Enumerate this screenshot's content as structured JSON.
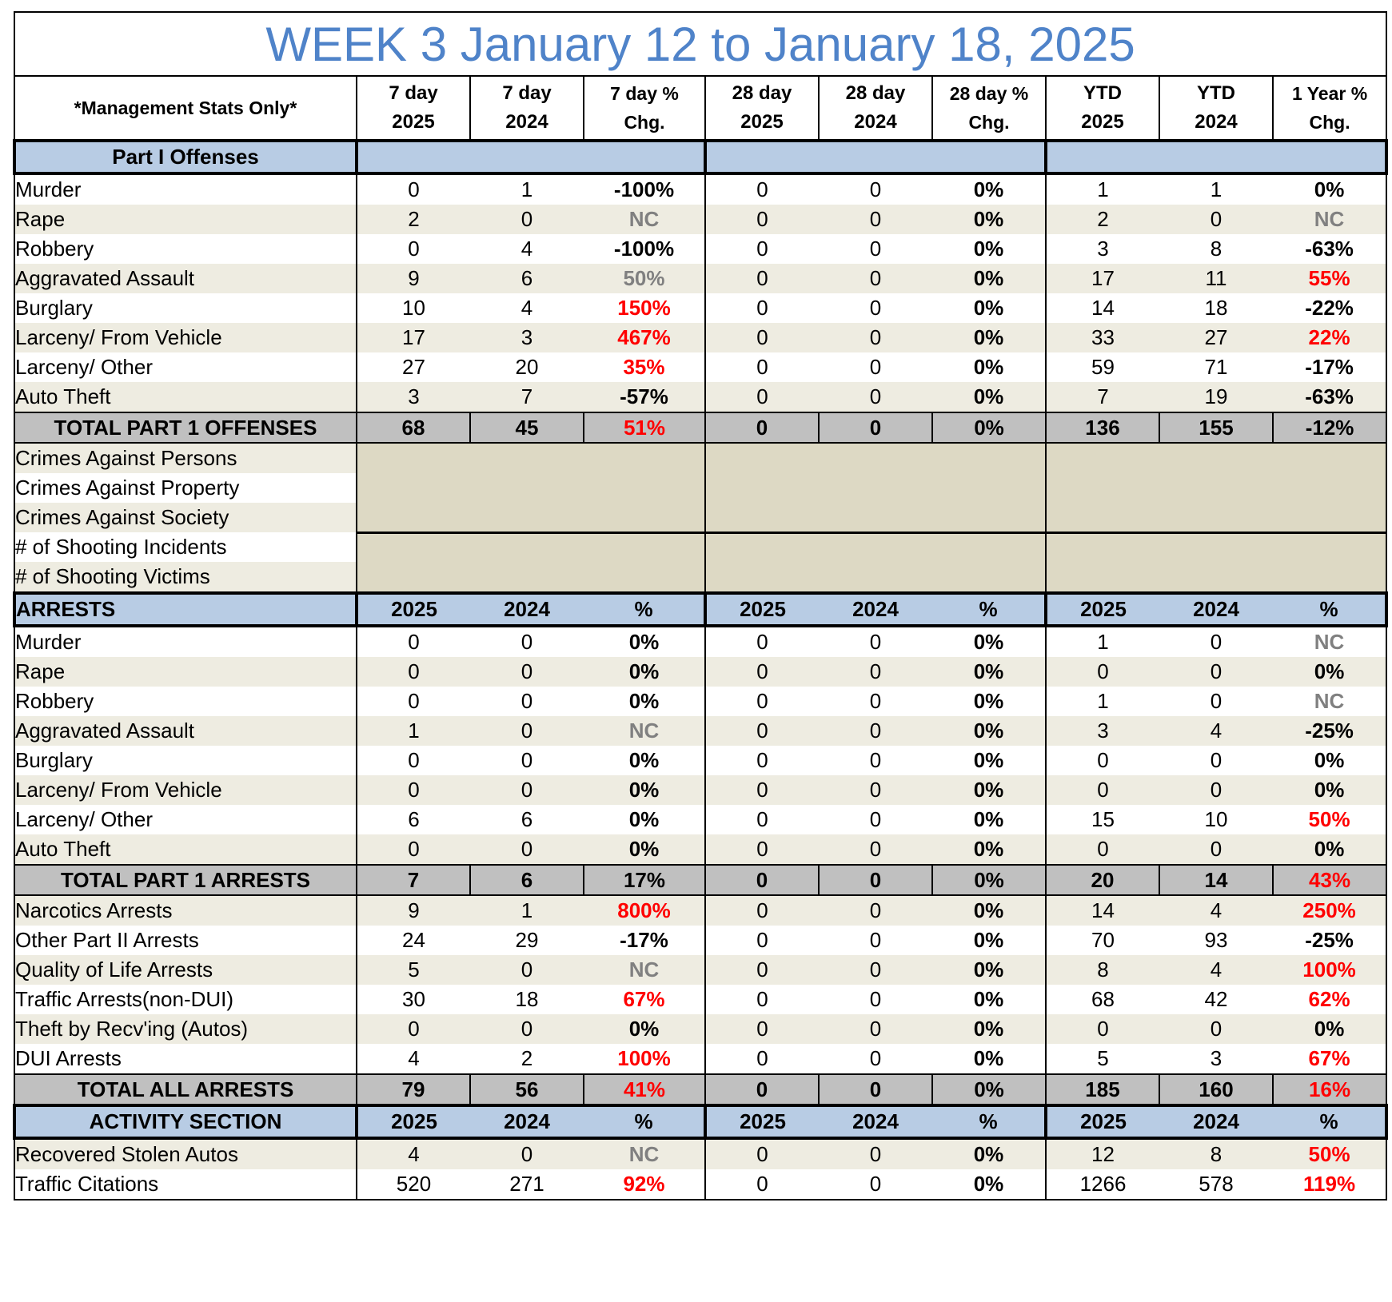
{
  "title": "WEEK 3 January 12 to January 18, 2025",
  "header": {
    "management_label": "*Management Stats Only*",
    "columns": [
      {
        "line1": "7 day",
        "line2": "2025"
      },
      {
        "line1": "7 day",
        "line2": "2024"
      },
      {
        "line1": "7 day %",
        "line2": "Chg."
      },
      {
        "line1": "28 day",
        "line2": "2025"
      },
      {
        "line1": "28 day",
        "line2": "2024"
      },
      {
        "line1": "28 day %",
        "line2": "Chg."
      },
      {
        "line1": "YTD",
        "line2": "2025"
      },
      {
        "line1": "YTD",
        "line2": "2024"
      },
      {
        "line1": "1 Year %",
        "line2": "Chg."
      }
    ]
  },
  "part1": {
    "label": "Part I Offenses",
    "rows": [
      {
        "label": "Murder",
        "v": [
          "0",
          "1",
          "-100%",
          "0",
          "0",
          "0%",
          "1",
          "1",
          "0%"
        ],
        "c": [
          "black",
          "black"
        ]
      },
      {
        "label": "Rape",
        "v": [
          "2",
          "0",
          "NC",
          "0",
          "0",
          "0%",
          "2",
          "0",
          "NC"
        ],
        "c": [
          "gray",
          "gray"
        ]
      },
      {
        "label": "Robbery",
        "v": [
          "0",
          "4",
          "-100%",
          "0",
          "0",
          "0%",
          "3",
          "8",
          "-63%"
        ],
        "c": [
          "black",
          "black"
        ]
      },
      {
        "label": "Aggravated Assault",
        "v": [
          "9",
          "6",
          "50%",
          "0",
          "0",
          "0%",
          "17",
          "11",
          "55%"
        ],
        "c": [
          "gray",
          "red"
        ]
      },
      {
        "label": "Burglary",
        "v": [
          "10",
          "4",
          "150%",
          "0",
          "0",
          "0%",
          "14",
          "18",
          "-22%"
        ],
        "c": [
          "red",
          "black"
        ]
      },
      {
        "label": "Larceny/ From Vehicle",
        "v": [
          "17",
          "3",
          "467%",
          "0",
          "0",
          "0%",
          "33",
          "27",
          "22%"
        ],
        "c": [
          "red",
          "red"
        ]
      },
      {
        "label": "Larceny/ Other",
        "v": [
          "27",
          "20",
          "35%",
          "0",
          "0",
          "0%",
          "59",
          "71",
          "-17%"
        ],
        "c": [
          "red",
          "black"
        ]
      },
      {
        "label": "Auto Theft",
        "v": [
          "3",
          "7",
          "-57%",
          "0",
          "0",
          "0%",
          "7",
          "19",
          "-63%"
        ],
        "c": [
          "black",
          "black"
        ]
      }
    ],
    "total": {
      "label": "TOTAL PART 1 OFFENSES",
      "v": [
        "68",
        "45",
        "51%",
        "0",
        "0",
        "0%",
        "136",
        "155",
        "-12%"
      ],
      "c": [
        "red",
        "black"
      ]
    }
  },
  "crimes_against": [
    "Crimes Against Persons",
    "Crimes Against Property",
    "Crimes Against Society"
  ],
  "shooting": [
    "# of Shooting Incidents",
    "# of Shooting Victims"
  ],
  "arrests": {
    "label": "ARRESTS",
    "cols": [
      "2025",
      "2024",
      "%",
      "2025",
      "2024",
      "%",
      "2025",
      "2024",
      "%"
    ],
    "rows": [
      {
        "label": "Murder",
        "v": [
          "0",
          "0",
          "0%",
          "0",
          "0",
          "0%",
          "1",
          "0",
          "NC"
        ],
        "c": [
          "black",
          "gray"
        ]
      },
      {
        "label": "Rape",
        "v": [
          "0",
          "0",
          "0%",
          "0",
          "0",
          "0%",
          "0",
          "0",
          "0%"
        ],
        "c": [
          "black",
          "black"
        ]
      },
      {
        "label": "Robbery",
        "v": [
          "0",
          "0",
          "0%",
          "0",
          "0",
          "0%",
          "1",
          "0",
          "NC"
        ],
        "c": [
          "black",
          "gray"
        ]
      },
      {
        "label": "Aggravated Assault",
        "v": [
          "1",
          "0",
          "NC",
          "0",
          "0",
          "0%",
          "3",
          "4",
          "-25%"
        ],
        "c": [
          "gray",
          "black"
        ]
      },
      {
        "label": "Burglary",
        "v": [
          "0",
          "0",
          "0%",
          "0",
          "0",
          "0%",
          "0",
          "0",
          "0%"
        ],
        "c": [
          "black",
          "black"
        ]
      },
      {
        "label": "Larceny/ From Vehicle",
        "v": [
          "0",
          "0",
          "0%",
          "0",
          "0",
          "0%",
          "0",
          "0",
          "0%"
        ],
        "c": [
          "black",
          "black"
        ]
      },
      {
        "label": "Larceny/ Other",
        "v": [
          "6",
          "6",
          "0%",
          "0",
          "0",
          "0%",
          "15",
          "10",
          "50%"
        ],
        "c": [
          "black",
          "red"
        ]
      },
      {
        "label": "Auto Theft",
        "v": [
          "0",
          "0",
          "0%",
          "0",
          "0",
          "0%",
          "0",
          "0",
          "0%"
        ],
        "c": [
          "black",
          "black"
        ]
      }
    ],
    "total": {
      "label": "TOTAL PART 1 ARRESTS",
      "v": [
        "7",
        "6",
        "17%",
        "0",
        "0",
        "0%",
        "20",
        "14",
        "43%"
      ],
      "c": [
        "black",
        "red"
      ]
    },
    "other_rows": [
      {
        "label": "Narcotics Arrests",
        "v": [
          "9",
          "1",
          "800%",
          "0",
          "0",
          "0%",
          "14",
          "4",
          "250%"
        ],
        "c": [
          "red",
          "red"
        ]
      },
      {
        "label": "Other Part II Arrests",
        "v": [
          "24",
          "29",
          "-17%",
          "0",
          "0",
          "0%",
          "70",
          "93",
          "-25%"
        ],
        "c": [
          "black",
          "black"
        ]
      },
      {
        "label": "Quality of Life Arrests",
        "v": [
          "5",
          "0",
          "NC",
          "0",
          "0",
          "0%",
          "8",
          "4",
          "100%"
        ],
        "c": [
          "gray",
          "red"
        ]
      },
      {
        "label": "Traffic Arrests(non-DUI)",
        "v": [
          "30",
          "18",
          "67%",
          "0",
          "0",
          "0%",
          "68",
          "42",
          "62%"
        ],
        "c": [
          "red",
          "red"
        ]
      },
      {
        "label": "Theft by Recv'ing (Autos)",
        "v": [
          "0",
          "0",
          "0%",
          "0",
          "0",
          "0%",
          "0",
          "0",
          "0%"
        ],
        "c": [
          "black",
          "black"
        ]
      },
      {
        "label": "DUI Arrests",
        "v": [
          "4",
          "2",
          "100%",
          "0",
          "0",
          "0%",
          "5",
          "3",
          "67%"
        ],
        "c": [
          "red",
          "red"
        ]
      }
    ],
    "grand_total": {
      "label": "TOTAL ALL ARRESTS",
      "v": [
        "79",
        "56",
        "41%",
        "0",
        "0",
        "0%",
        "185",
        "160",
        "16%"
      ],
      "c": [
        "red",
        "red"
      ]
    }
  },
  "activity": {
    "label": "ACTIVITY SECTION",
    "cols": [
      "2025",
      "2024",
      "%",
      "2025",
      "2024",
      "%",
      "2025",
      "2024",
      "%"
    ],
    "rows": [
      {
        "label": "Recovered Stolen Autos",
        "v": [
          "4",
          "0",
          "NC",
          "0",
          "0",
          "0%",
          "12",
          "8",
          "50%"
        ],
        "c": [
          "gray",
          "red"
        ]
      },
      {
        "label": "Traffic Citations",
        "v": [
          "520",
          "271",
          "92%",
          "0",
          "0",
          "0%",
          "1266",
          "578",
          "119%"
        ],
        "c": [
          "red",
          "red"
        ]
      }
    ]
  },
  "colors": {
    "title": "#4f83c9",
    "section_bg": "#b8cce4",
    "total_bg": "#c0c0c0",
    "band_bg": "#eeece1",
    "blank_bg": "#ddd9c4",
    "red": "#ff0000",
    "gray": "#808080"
  }
}
